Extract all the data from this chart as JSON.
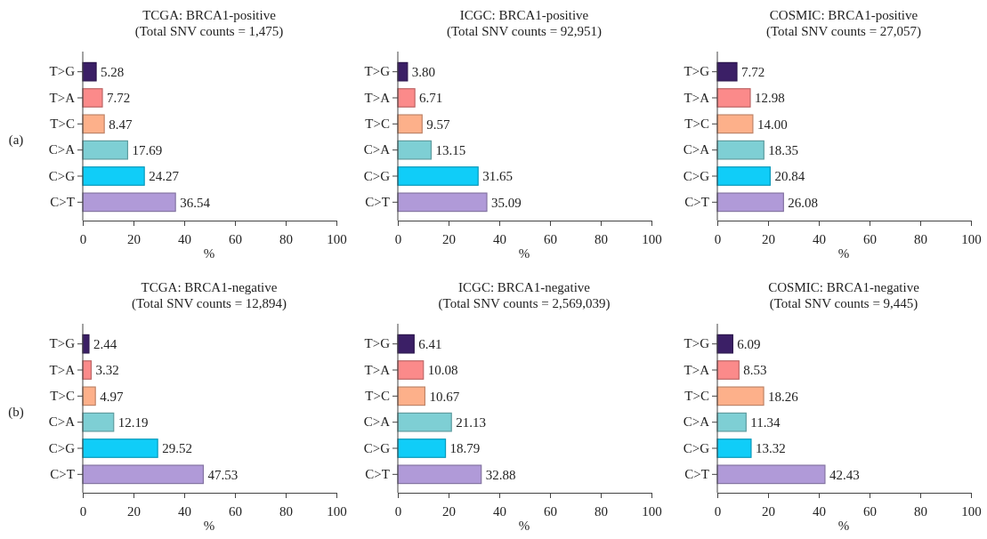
{
  "chart_data": [
    {
      "type": "bar",
      "orientation": "horizontal",
      "title": "TCGA: BRCA1-positive",
      "subtitle": "(Total SNV counts = 1,475)",
      "xlabel": "%",
      "categories": [
        "T>G",
        "T>A",
        "T>C",
        "C>A",
        "C>G",
        "C>T"
      ],
      "values": [
        5.28,
        7.72,
        8.47,
        17.69,
        24.27,
        36.54
      ],
      "value_labels": [
        "5.28",
        "7.72",
        "8.47",
        "17.69",
        "24.27",
        "36.54"
      ],
      "colors": [
        "#3b1f66",
        "#fb8a8a",
        "#fdb08a",
        "#7ecfd4",
        "#10cdf8",
        "#b09ad8"
      ],
      "xlim": [
        0,
        100
      ],
      "xticks": [
        0,
        20,
        40,
        60,
        80,
        100
      ],
      "annotations": [
        "(a)"
      ]
    },
    {
      "type": "bar",
      "orientation": "horizontal",
      "title": "ICGC: BRCA1-positive",
      "subtitle": "(Total SNV counts = 92,951)",
      "xlabel": "%",
      "categories": [
        "T>G",
        "T>A",
        "T>C",
        "C>A",
        "C>G",
        "C>T"
      ],
      "values": [
        3.8,
        6.71,
        9.57,
        13.15,
        31.65,
        35.09
      ],
      "value_labels": [
        "3.80",
        "6.71",
        "9.57",
        "13.15",
        "31.65",
        "35.09"
      ],
      "colors": [
        "#3b1f66",
        "#fb8a8a",
        "#fdb08a",
        "#7ecfd4",
        "#10cdf8",
        "#b09ad8"
      ],
      "xlim": [
        0,
        100
      ],
      "xticks": [
        0,
        20,
        40,
        60,
        80,
        100
      ]
    },
    {
      "type": "bar",
      "orientation": "horizontal",
      "title": "COSMIC: BRCA1-positive",
      "subtitle": "(Total SNV counts = 27,057)",
      "xlabel": "%",
      "categories": [
        "T>G",
        "T>A",
        "T>C",
        "C>A",
        "C>G",
        "C>T"
      ],
      "values": [
        7.72,
        12.98,
        14.0,
        18.35,
        20.84,
        26.08
      ],
      "value_labels": [
        "7.72",
        "12.98",
        "14.00",
        "18.35",
        "20.84",
        "26.08"
      ],
      "colors": [
        "#3b1f66",
        "#fb8a8a",
        "#fdb08a",
        "#7ecfd4",
        "#10cdf8",
        "#b09ad8"
      ],
      "xlim": [
        0,
        100
      ],
      "xticks": [
        0,
        20,
        40,
        60,
        80,
        100
      ]
    },
    {
      "type": "bar",
      "orientation": "horizontal",
      "title": "TCGA: BRCA1-negative",
      "subtitle": "(Total SNV counts = 12,894)",
      "xlabel": "%",
      "categories": [
        "T>G",
        "T>A",
        "T>C",
        "C>A",
        "C>G",
        "C>T"
      ],
      "values": [
        2.44,
        3.32,
        4.97,
        12.19,
        29.52,
        47.53
      ],
      "value_labels": [
        "2.44",
        "3.32",
        "4.97",
        "12.19",
        "29.52",
        "47.53"
      ],
      "colors": [
        "#3b1f66",
        "#fb8a8a",
        "#fdb08a",
        "#7ecfd4",
        "#10cdf8",
        "#b09ad8"
      ],
      "xlim": [
        0,
        100
      ],
      "xticks": [
        0,
        20,
        40,
        60,
        80,
        100
      ],
      "annotations": [
        "(b)"
      ]
    },
    {
      "type": "bar",
      "orientation": "horizontal",
      "title": "ICGC: BRCA1-negative",
      "subtitle": "(Total SNV counts = 2,569,039)",
      "xlabel": "%",
      "categories": [
        "T>G",
        "T>A",
        "T>C",
        "C>A",
        "C>G",
        "C>T"
      ],
      "values": [
        6.41,
        10.08,
        10.67,
        21.13,
        18.79,
        32.88
      ],
      "value_labels": [
        "6.41",
        "10.08",
        "10.67",
        "21.13",
        "18.79",
        "32.88"
      ],
      "colors": [
        "#3b1f66",
        "#fb8a8a",
        "#fdb08a",
        "#7ecfd4",
        "#10cdf8",
        "#b09ad8"
      ],
      "xlim": [
        0,
        100
      ],
      "xticks": [
        0,
        20,
        40,
        60,
        80,
        100
      ]
    },
    {
      "type": "bar",
      "orientation": "horizontal",
      "title": "COSMIC: BRCA1-negative",
      "subtitle": "(Total SNV counts = 9,445)",
      "xlabel": "%",
      "categories": [
        "T>G",
        "T>A",
        "T>C",
        "C>A",
        "C>G",
        "C>T"
      ],
      "values": [
        6.09,
        8.53,
        18.26,
        11.34,
        13.32,
        42.43
      ],
      "value_labels": [
        "6.09",
        "8.53",
        "18.26",
        "11.34",
        "13.32",
        "42.43"
      ],
      "colors": [
        "#3b1f66",
        "#fb8a8a",
        "#fdb08a",
        "#7ecfd4",
        "#10cdf8",
        "#b09ad8"
      ],
      "xlim": [
        0,
        100
      ],
      "xticks": [
        0,
        20,
        40,
        60,
        80,
        100
      ]
    }
  ]
}
